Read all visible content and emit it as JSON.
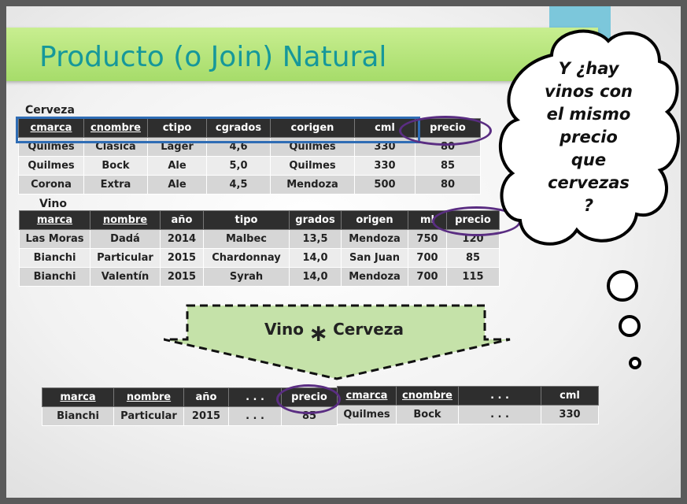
{
  "title": "Producto (o Join) Natural",
  "cerveza": {
    "label": "Cerveza",
    "headers": [
      "cmarca",
      "cnombre",
      "ctipo",
      "cgrados",
      "corigen",
      "cml",
      "precio"
    ],
    "rows": [
      [
        "Quilmes",
        "Clásica",
        "Lager",
        "4,6",
        "Quilmes",
        "330",
        "80"
      ],
      [
        "Quilmes",
        "Bock",
        "Ale",
        "5,0",
        "Quilmes",
        "330",
        "85"
      ],
      [
        "Corona",
        "Extra",
        "Ale",
        "4,5",
        "Mendoza",
        "500",
        "80"
      ]
    ]
  },
  "vino": {
    "label": "Vino",
    "headers": [
      "marca",
      "nombre",
      "año",
      "tipo",
      "grados",
      "origen",
      "ml",
      "precio"
    ],
    "rows": [
      [
        "Las Moras",
        "Dadá",
        "2014",
        "Malbec",
        "13,5",
        "Mendoza",
        "750",
        "120"
      ],
      [
        "Bianchi",
        "Particular",
        "2015",
        "Chardonnay",
        "14,0",
        "San Juan",
        "700",
        "85"
      ],
      [
        "Bianchi",
        "Valentín",
        "2015",
        "Syrah",
        "14,0",
        "Mendoza",
        "700",
        "115"
      ]
    ]
  },
  "operation": {
    "left": "Vino",
    "operator": "∗",
    "right": "Cerveza"
  },
  "result": {
    "headers": [
      "marca",
      "nombre",
      "año",
      ". . .",
      "precio",
      "cmarca",
      "cnombre",
      ". . .",
      "cml"
    ],
    "row": [
      "Bianchi",
      "Particular",
      "2015",
      ". . .",
      "85",
      "Quilmes",
      "Bock",
      ". . .",
      "330"
    ]
  },
  "thought": {
    "lines": [
      "Y ¿hay",
      "vinos con",
      "el mismo",
      "precio",
      "que",
      "cervezas",
      "?"
    ]
  },
  "colors": {
    "title_bar": "#b5e57a",
    "title_text": "#16989a",
    "tab": "#7cc7db",
    "ring": "#5a2d82",
    "highlight": "#2f6db5",
    "arrow_fill": "#c5e2a9"
  }
}
